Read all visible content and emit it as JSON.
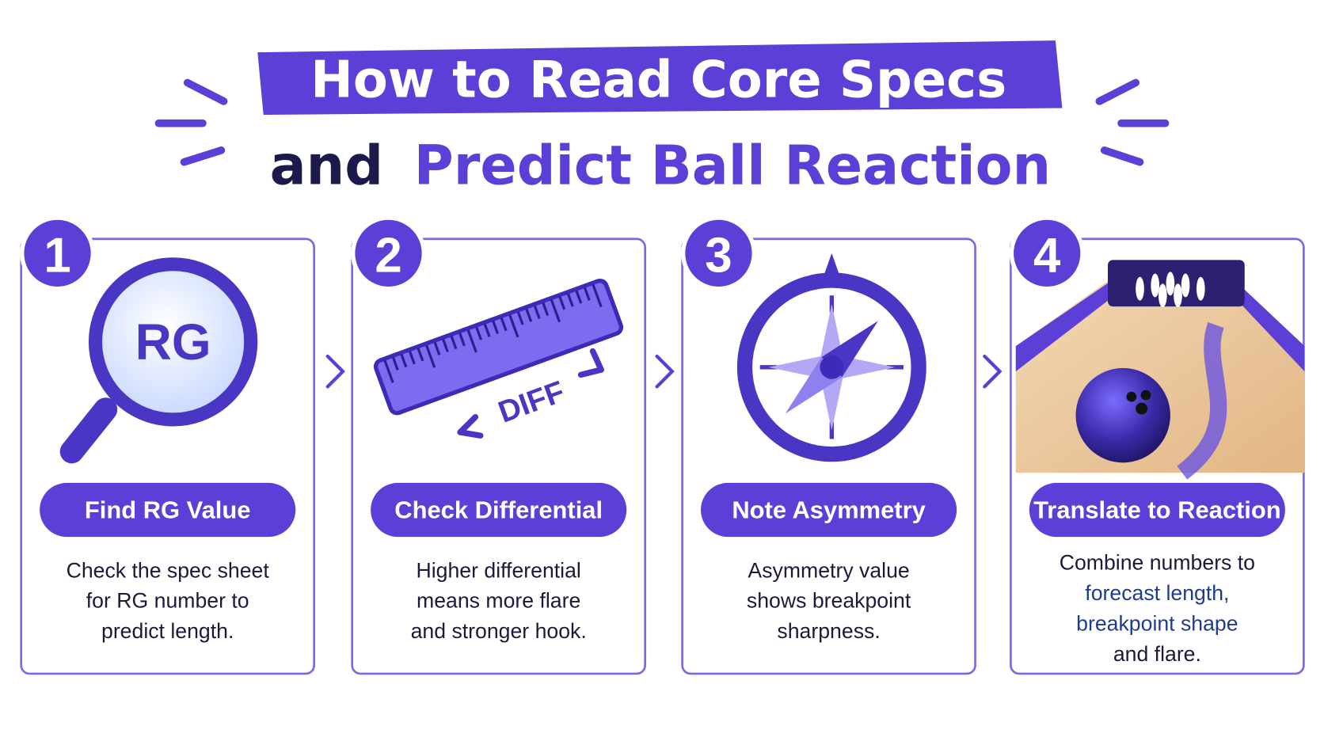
{
  "header": {
    "title_line1": "How to Read Core Specs",
    "title_line2_prefix": "and",
    "title_line2_highlight": "Predict Ball Reaction"
  },
  "steps": [
    {
      "number": "1",
      "icon_text": "RG",
      "label": "Find RG Value",
      "description": [
        "Check the spec sheet",
        "for RG number to",
        "predict length."
      ]
    },
    {
      "number": "2",
      "icon_text": "DIFF",
      "label": "Check Differential",
      "description": [
        "Higher differential",
        "means more flare",
        "and stronger hook."
      ]
    },
    {
      "number": "3",
      "label": "Note Asymmetry",
      "description": [
        "Asymmetry value",
        "shows breakpoint",
        "sharpness."
      ]
    },
    {
      "number": "4",
      "label": "Translate to Reaction",
      "description": [
        "Combine numbers to",
        "forecast length,",
        "breakpoint shape",
        "and flare."
      ]
    }
  ]
}
